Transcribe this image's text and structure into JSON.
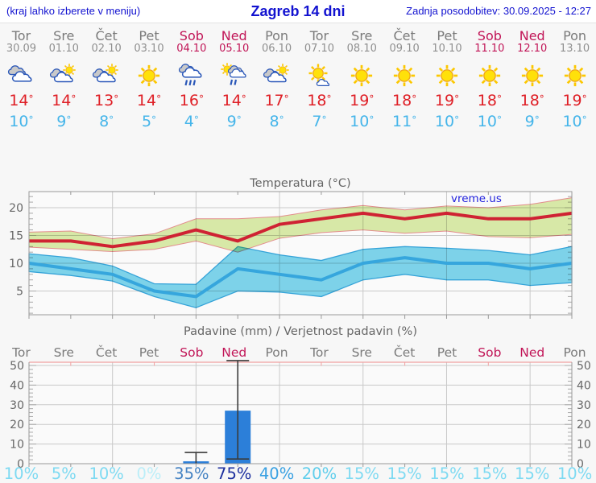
{
  "header": {
    "menu_hint": "(kraj lahko izberete v meniju)",
    "title": "Zagreb 14 dni",
    "last_update": "Zadnja posodobitev: 30.09.2025 - 12:27"
  },
  "units": {
    "degree": "°"
  },
  "days": [
    {
      "name": "Tor",
      "date": "30.09",
      "icon": "cloudy",
      "high": "14",
      "low": "10",
      "weekend": false
    },
    {
      "name": "Sre",
      "date": "01.10",
      "icon": "partly-cloudy",
      "high": "14",
      "low": "9",
      "weekend": false
    },
    {
      "name": "Čet",
      "date": "02.10",
      "icon": "partly-cloudy",
      "high": "13",
      "low": "8",
      "weekend": false
    },
    {
      "name": "Pet",
      "date": "03.10",
      "icon": "sunny",
      "high": "14",
      "low": "5",
      "weekend": false
    },
    {
      "name": "Sob",
      "date": "04.10",
      "icon": "rain",
      "high": "16",
      "low": "4",
      "weekend": true
    },
    {
      "name": "Ned",
      "date": "05.10",
      "icon": "sun-rain",
      "high": "14",
      "low": "9",
      "weekend": true
    },
    {
      "name": "Pon",
      "date": "06.10",
      "icon": "partly-cloudy",
      "high": "17",
      "low": "8",
      "weekend": false
    },
    {
      "name": "Tor",
      "date": "07.10",
      "icon": "mostly-sunny",
      "high": "18",
      "low": "7",
      "weekend": false
    },
    {
      "name": "Sre",
      "date": "08.10",
      "icon": "sunny",
      "high": "19",
      "low": "10",
      "weekend": false
    },
    {
      "name": "Čet",
      "date": "09.10",
      "icon": "sunny",
      "high": "18",
      "low": "11",
      "weekend": false
    },
    {
      "name": "Pet",
      "date": "10.10",
      "icon": "sunny",
      "high": "19",
      "low": "10",
      "weekend": false
    },
    {
      "name": "Sob",
      "date": "11.10",
      "icon": "sunny",
      "high": "18",
      "low": "10",
      "weekend": true
    },
    {
      "name": "Ned",
      "date": "12.10",
      "icon": "sunny",
      "high": "18",
      "low": "9",
      "weekend": true
    },
    {
      "name": "Pon",
      "date": "13.10",
      "icon": "sunny",
      "high": "19",
      "low": "10",
      "weekend": false
    }
  ],
  "chart_data": [
    {
      "type": "line",
      "title": "Temperatura (°C)",
      "watermark": "vreme.us",
      "ylim": [
        0,
        23
      ],
      "yticks": [
        5,
        10,
        15,
        20
      ],
      "x_count": 14,
      "series": {
        "tmax": [
          14,
          14,
          13,
          14,
          16,
          14,
          17,
          18,
          19,
          18,
          19,
          18,
          18,
          19
        ],
        "tmax_upper": [
          15.6,
          15.8,
          14.4,
          15.3,
          18.0,
          18.0,
          18.4,
          19.6,
          20.4,
          19.6,
          20.3,
          20.0,
          20.6,
          21.8
        ],
        "tmax_lower": [
          12.9,
          12.5,
          12.1,
          12.5,
          14.0,
          12.0,
          14.5,
          15.5,
          16.0,
          15.4,
          15.8,
          14.8,
          14.6,
          15.2
        ],
        "tmin": [
          10,
          9,
          8,
          5,
          4,
          9,
          8,
          7,
          10,
          11,
          10,
          10,
          9,
          10
        ],
        "tmin_upper": [
          11.7,
          11.0,
          9.5,
          6.3,
          6.2,
          13.0,
          11.5,
          10.5,
          12.5,
          13.0,
          12.7,
          12.3,
          11.5,
          13.0
        ],
        "tmin_lower": [
          8.5,
          7.8,
          6.8,
          4.0,
          2.0,
          5.0,
          4.8,
          4.0,
          7.0,
          8.0,
          7.0,
          7.0,
          6.0,
          6.5
        ]
      }
    },
    {
      "type": "bar",
      "title": "Padavine (mm) / Verjetnost padavin (%)",
      "day_labels": [
        "Tor",
        "Sre",
        "Čet",
        "Pet",
        "Sob",
        "Ned",
        "Pon",
        "Tor",
        "Sre",
        "Čet",
        "Pet",
        "Sob",
        "Ned",
        "Pon"
      ],
      "weekend_flags": [
        false,
        false,
        false,
        false,
        true,
        true,
        false,
        false,
        false,
        false,
        false,
        true,
        true,
        false
      ],
      "ylim": [
        0,
        52
      ],
      "yticks": [
        0,
        10,
        20,
        30,
        40,
        50
      ],
      "bars": {
        "values": [
          0,
          0,
          0,
          0,
          1.2,
          27,
          0,
          0,
          0,
          0,
          0,
          0,
          0,
          0
        ],
        "whisker_low": [
          0,
          0,
          0,
          0,
          0,
          2.4,
          0,
          0,
          0,
          0,
          0,
          0,
          0,
          0
        ],
        "whisker_high": [
          0,
          0,
          0,
          0,
          5.7,
          52.5,
          0,
          0,
          0,
          0,
          0,
          0,
          0,
          0
        ]
      },
      "probabilities": [
        "10%",
        "5%",
        "10%",
        "0%",
        "35%",
        "75%",
        "40%",
        "20%",
        "15%",
        "15%",
        "15%",
        "15%",
        "15%",
        "10%"
      ],
      "probability_colors": [
        "#7edaf2",
        "#7edaf2",
        "#7edaf2",
        "#bceef8",
        "#4583c3",
        "#1c2f9e",
        "#38a0e2",
        "#5fceec",
        "#7edaf2",
        "#7edaf2",
        "#7edaf2",
        "#7edaf2",
        "#7edaf2",
        "#7edaf2"
      ]
    }
  ],
  "colors": {
    "header_blue": "#1212d0",
    "weekend": "#c11557",
    "day_gray": "#7a7a7a",
    "high_red": "#df1f26",
    "low_blue": "#45b5ea",
    "tmax_line": "#cf2233",
    "tmax_band_fill": "#dcedaa",
    "tmax_band_edge": "#e89090",
    "tmin_line": "#36a6dd",
    "tmin_band_fill": "#7fd7ee",
    "bar_fill": "#2c7fd9",
    "whisker": "#3a3a3a",
    "grid": "#c9c9c9",
    "axis": "#999999",
    "plot_bg": "#fafafa",
    "page_bg": "#f7f7f7",
    "top_line_pink": "#f0a0a0",
    "chart_title_gray": "#666666",
    "tick_label_gray": "#666666",
    "watermark_blue": "#2222dd"
  }
}
